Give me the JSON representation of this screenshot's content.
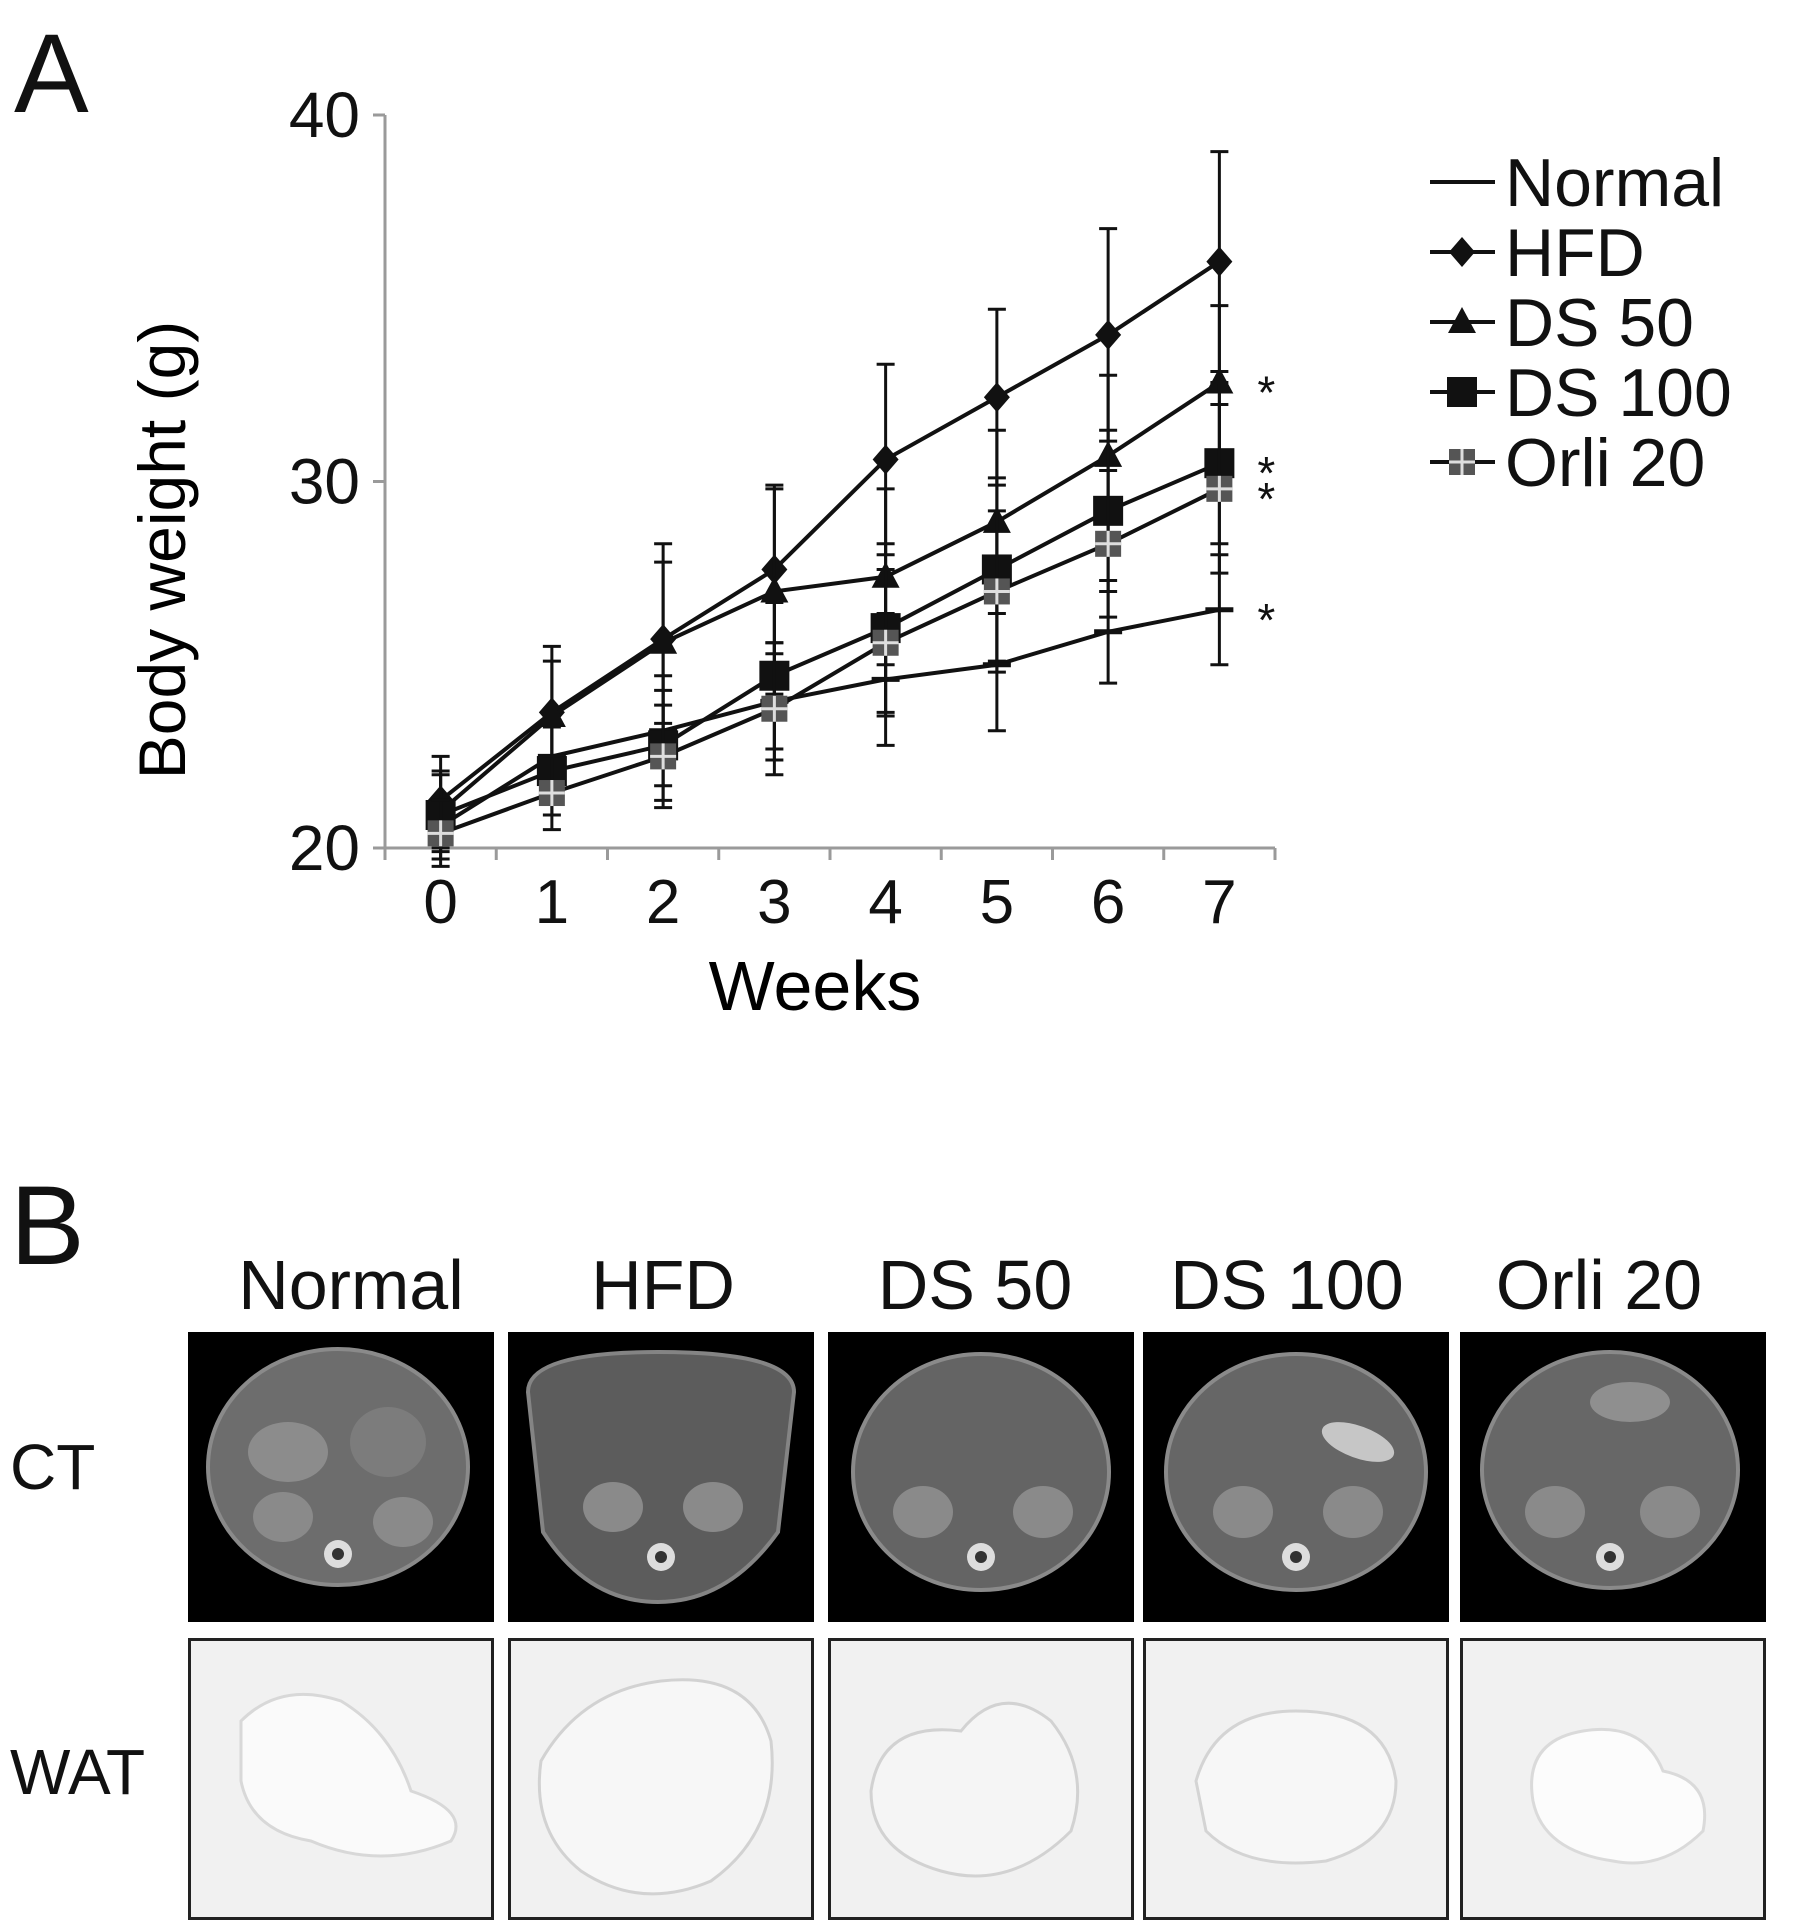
{
  "panel_labels": {
    "a": "A",
    "b": "B"
  },
  "chart_data": {
    "type": "line",
    "xlabel": "Weeks",
    "ylabel": "Body weight (g)",
    "x": [
      0,
      1,
      2,
      3,
      4,
      5,
      6,
      7
    ],
    "xlim": [
      -0.5,
      7.5
    ],
    "ylim": [
      20,
      40
    ],
    "yticks": [
      20,
      30,
      40
    ],
    "grid": false,
    "legend": "right",
    "series": [
      {
        "name": "Normal",
        "marker": "dash",
        "values": [
          20.6,
          22.5,
          23.2,
          24.0,
          24.6,
          25.0,
          25.9,
          26.5
        ],
        "err": [
          0.7,
          1.0,
          1.5,
          1.6,
          1.8,
          1.8,
          1.4,
          1.5
        ],
        "sig": "*"
      },
      {
        "name": "HFD",
        "marker": "diamond",
        "values": [
          21.3,
          23.7,
          25.7,
          27.6,
          30.6,
          32.3,
          34.0,
          36.0
        ],
        "err": [
          1.2,
          1.8,
          2.6,
          2.3,
          2.6,
          2.4,
          2.9,
          3.0
        ],
        "sig": ""
      },
      {
        "name": "DS 50",
        "marker": "triangle",
        "values": [
          21.0,
          23.6,
          25.6,
          27.0,
          27.4,
          28.9,
          30.7,
          32.7
        ],
        "err": [
          1.0,
          1.5,
          2.2,
          2.8,
          2.4,
          2.5,
          2.2,
          2.1
        ],
        "sig": "*"
      },
      {
        "name": "DS 100",
        "marker": "square",
        "values": [
          20.9,
          22.1,
          22.8,
          24.7,
          26.0,
          27.6,
          29.2,
          30.5
        ],
        "err": [
          1.2,
          1.2,
          1.5,
          2.0,
          2.3,
          2.5,
          2.2,
          2.2
        ],
        "sig": "*"
      },
      {
        "name": "Orli 20",
        "marker": "square-gray",
        "values": [
          20.4,
          21.5,
          22.5,
          23.8,
          25.6,
          27.0,
          28.3,
          29.8
        ],
        "err": [
          0.9,
          1.0,
          1.4,
          1.8,
          2.0,
          2.2,
          2.0,
          2.3
        ],
        "sig": "*"
      }
    ]
  },
  "image_panel": {
    "groups": [
      "Normal",
      "HFD",
      "DS 50",
      "DS 100",
      "Orli 20"
    ],
    "rows": [
      "CT",
      "WAT"
    ]
  }
}
